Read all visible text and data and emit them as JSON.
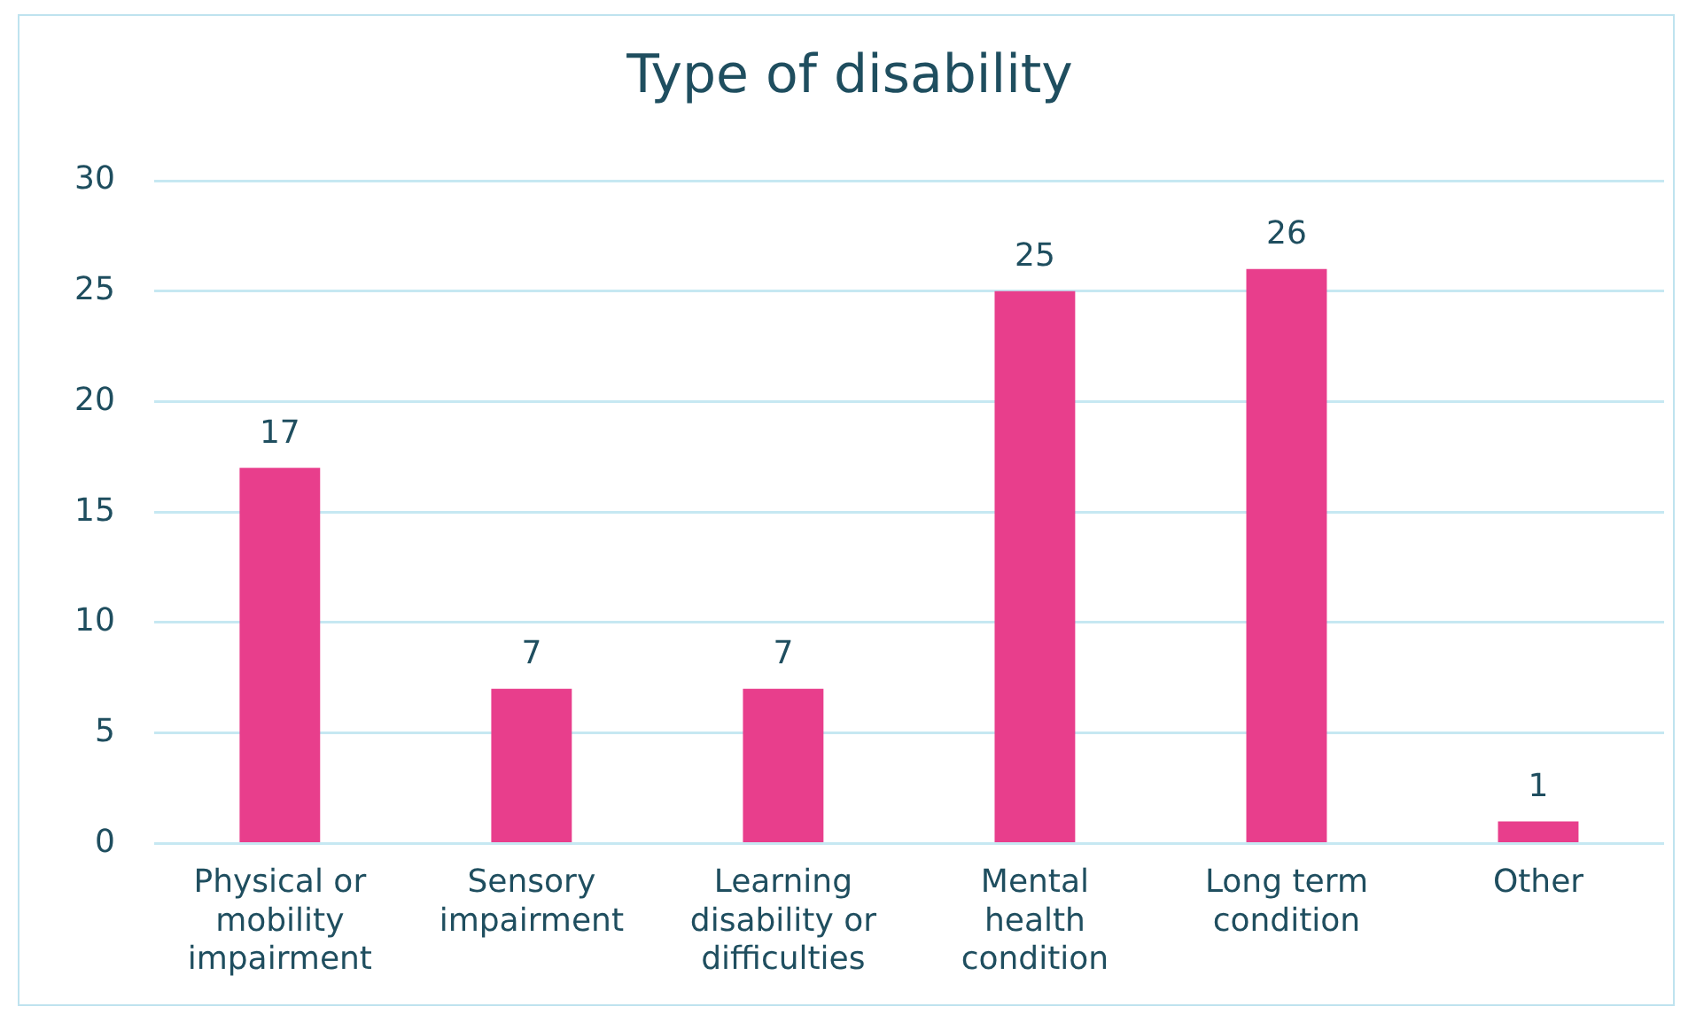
{
  "chart_data": {
    "type": "bar",
    "title": "Type of disability",
    "categories": [
      "Physical or\nmobility\nimpairment",
      "Sensory\nimpairment",
      "Learning\ndisability or\ndifficulties",
      "Mental\nhealth\ncondition",
      "Long term\ncondition",
      "Other"
    ],
    "values": [
      17,
      7,
      7,
      25,
      26,
      1
    ],
    "color": "#e83e8c",
    "ylim": [
      0,
      30
    ],
    "yticks": [
      0,
      5,
      10,
      15,
      20,
      25,
      30
    ],
    "grid": "y",
    "data_labels": true
  }
}
